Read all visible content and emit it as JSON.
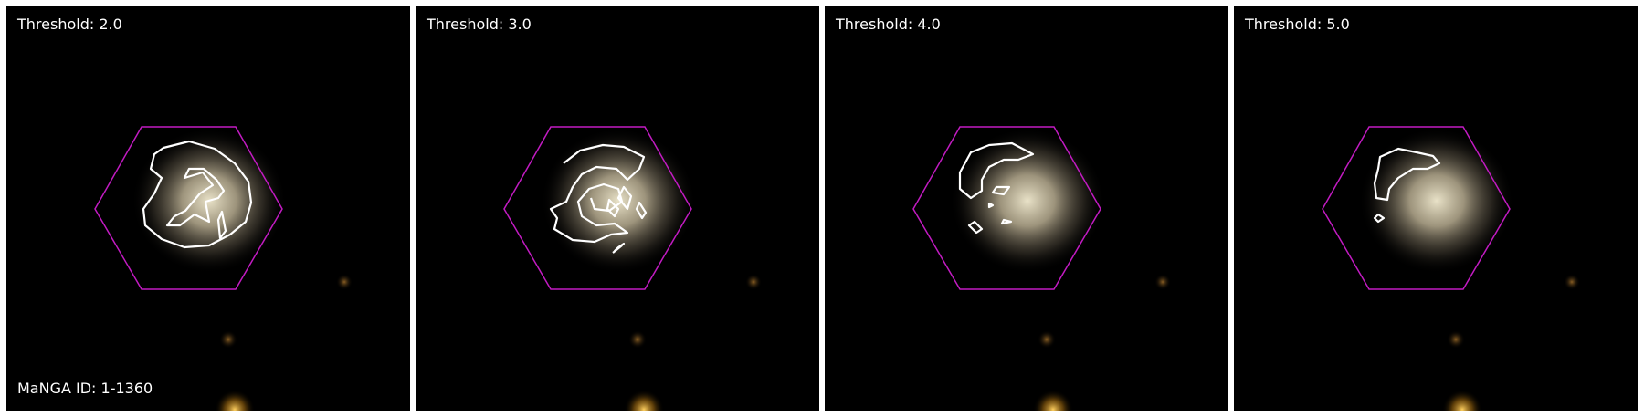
{
  "panels": [
    {
      "threshold_label": "Threshold: 2.0",
      "contour_level": 2.0
    },
    {
      "threshold_label": "Threshold: 3.0",
      "contour_level": 3.0
    },
    {
      "threshold_label": "Threshold: 4.0",
      "contour_level": 4.0
    },
    {
      "threshold_label": "Threshold: 5.0",
      "contour_level": 5.0
    }
  ],
  "manga_id_label": "MaNGA ID: 1-1360",
  "colors": {
    "background": "#000000",
    "hexagon": "#c21bc2",
    "contour": "#ffffff",
    "galaxy_core": "#e9e2c8",
    "separator": "#ffffff"
  },
  "icons": [
    "ifu-hexagon-footprint",
    "threshold-contour",
    "galaxy-image"
  ]
}
